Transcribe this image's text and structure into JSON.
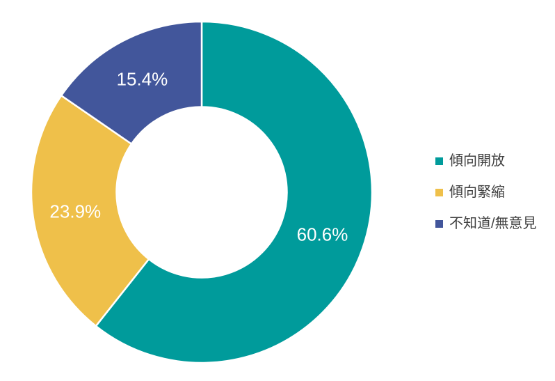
{
  "chart_data": {
    "type": "pie",
    "subtype": "donut",
    "title": "",
    "categories": [
      "傾向開放",
      "傾向緊縮",
      "不知道/無意見"
    ],
    "values": [
      60.6,
      23.9,
      15.4
    ],
    "data_labels": [
      "60.6%",
      "23.9%",
      "15.4%"
    ],
    "colors": [
      "#009B9B",
      "#EFC04A",
      "#42569B"
    ],
    "start_angle_deg": 0,
    "direction": "clockwise",
    "inner_radius_ratio": 0.5,
    "separator_color": "#FFFFFF",
    "data_label_color": "#FFFFFF",
    "legend_position": "right",
    "background_color": "#FFFFFF"
  },
  "legend": {
    "items": [
      {
        "label": "傾向開放",
        "color": "#009B9B"
      },
      {
        "label": "傾向緊縮",
        "color": "#EFC04A"
      },
      {
        "label": "不知道/無意見",
        "color": "#42569B"
      }
    ]
  }
}
